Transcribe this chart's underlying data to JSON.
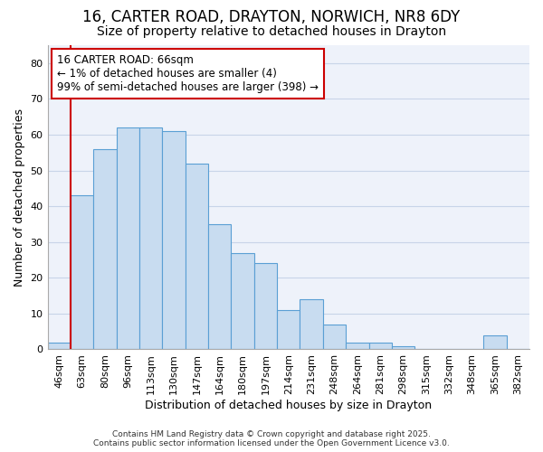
{
  "title1": "16, CARTER ROAD, DRAYTON, NORWICH, NR8 6DY",
  "title2": "Size of property relative to detached houses in Drayton",
  "xlabel": "Distribution of detached houses by size in Drayton",
  "ylabel": "Number of detached properties",
  "categories": [
    "46sqm",
    "63sqm",
    "80sqm",
    "96sqm",
    "113sqm",
    "130sqm",
    "147sqm",
    "164sqm",
    "180sqm",
    "197sqm",
    "214sqm",
    "231sqm",
    "248sqm",
    "264sqm",
    "281sqm",
    "298sqm",
    "315sqm",
    "332sqm",
    "348sqm",
    "365sqm",
    "382sqm"
  ],
  "values": [
    2,
    43,
    56,
    62,
    62,
    61,
    52,
    35,
    27,
    24,
    11,
    14,
    7,
    2,
    2,
    1,
    0,
    0,
    0,
    4,
    0
  ],
  "bar_color": "#c8dcf0",
  "bar_edge_color": "#5a9fd4",
  "annotation_box_text": "16 CARTER ROAD: 66sqm\n← 1% of detached houses are smaller (4)\n99% of semi-detached houses are larger (398) →",
  "annotation_box_color": "#ffffff",
  "annotation_box_edge_color": "#cc0000",
  "red_line_x": 1,
  "ylim": [
    0,
    85
  ],
  "yticks": [
    0,
    10,
    20,
    30,
    40,
    50,
    60,
    70,
    80
  ],
  "grid_color": "#c8d4e8",
  "background_color": "#ffffff",
  "plot_bg_color": "#eef2fa",
  "footer_text": "Contains HM Land Registry data © Crown copyright and database right 2025.\nContains public sector information licensed under the Open Government Licence v3.0.",
  "title_fontsize": 12,
  "subtitle_fontsize": 10,
  "axis_label_fontsize": 9,
  "tick_fontsize": 8,
  "annotation_fontsize": 8.5,
  "red_line_color": "#cc0000"
}
